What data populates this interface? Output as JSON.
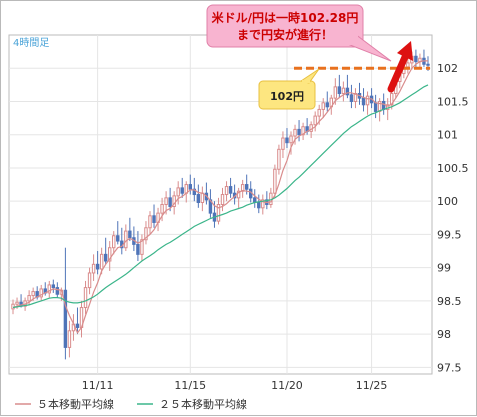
{
  "chart_data": {
    "type": "candlestick",
    "period_label": "4時間足",
    "ylim": [
      97.4,
      102.5
    ],
    "y_ticks": [
      "102",
      "101.5",
      "101",
      "100.5",
      "100",
      "99.5",
      "99",
      "98.5",
      "98",
      "97.5"
    ],
    "y_tick_values": [
      102,
      101.5,
      101,
      100.5,
      100,
      99.5,
      99,
      98.5,
      98,
      97.5
    ],
    "x_ticks": [
      "11/11",
      "11/15",
      "11/20",
      "11/25"
    ],
    "x_tick_indices": [
      21,
      44,
      68,
      89
    ],
    "candle_count": 104,
    "candles": [
      [
        98.38,
        98.52,
        98.3,
        98.45
      ],
      [
        98.45,
        98.55,
        98.38,
        98.48
      ],
      [
        98.48,
        98.6,
        98.4,
        98.42
      ],
      [
        98.42,
        98.55,
        98.35,
        98.5
      ],
      [
        98.5,
        98.66,
        98.44,
        98.58
      ],
      [
        98.58,
        98.7,
        98.5,
        98.64
      ],
      [
        98.64,
        98.72,
        98.52,
        98.56
      ],
      [
        98.56,
        98.74,
        98.5,
        98.68
      ],
      [
        98.68,
        98.78,
        98.58,
        98.62
      ],
      [
        98.62,
        98.8,
        98.55,
        98.74
      ],
      [
        98.74,
        98.82,
        98.62,
        98.7
      ],
      [
        98.7,
        98.78,
        98.55,
        98.6
      ],
      [
        98.6,
        98.7,
        98.5,
        98.66
      ],
      [
        98.66,
        99.3,
        97.62,
        97.8
      ],
      [
        97.8,
        98.2,
        97.65,
        98.05
      ],
      [
        98.05,
        98.3,
        97.9,
        98.15
      ],
      [
        98.15,
        98.4,
        98.0,
        98.1
      ],
      [
        98.1,
        98.5,
        97.95,
        98.4
      ],
      [
        98.4,
        98.8,
        98.3,
        98.7
      ],
      [
        98.7,
        99.0,
        98.6,
        98.92
      ],
      [
        98.92,
        99.2,
        98.8,
        99.05
      ],
      [
        99.05,
        99.25,
        98.9,
        98.98
      ],
      [
        98.98,
        99.3,
        98.9,
        99.2
      ],
      [
        99.2,
        99.45,
        99.05,
        99.1
      ],
      [
        99.1,
        99.4,
        98.95,
        99.3
      ],
      [
        99.3,
        99.55,
        99.2,
        99.48
      ],
      [
        99.48,
        99.7,
        99.35,
        99.4
      ],
      [
        99.4,
        99.6,
        99.2,
        99.3
      ],
      [
        99.3,
        99.65,
        99.25,
        99.55
      ],
      [
        99.55,
        99.75,
        99.4,
        99.45
      ],
      [
        99.45,
        99.62,
        99.25,
        99.35
      ],
      [
        99.35,
        99.55,
        99.1,
        99.2
      ],
      [
        99.2,
        99.5,
        99.1,
        99.42
      ],
      [
        99.42,
        99.7,
        99.35,
        99.6
      ],
      [
        99.6,
        99.85,
        99.5,
        99.78
      ],
      [
        99.78,
        99.95,
        99.6,
        99.68
      ],
      [
        99.68,
        99.9,
        99.55,
        99.82
      ],
      [
        99.82,
        100.05,
        99.7,
        99.95
      ],
      [
        99.95,
        100.15,
        99.8,
        100.05
      ],
      [
        100.05,
        100.2,
        99.85,
        99.92
      ],
      [
        99.92,
        100.15,
        99.8,
        100.08
      ],
      [
        100.08,
        100.3,
        99.95,
        100.2
      ],
      [
        100.2,
        100.35,
        100.05,
        100.12
      ],
      [
        100.12,
        100.3,
        99.98,
        100.25
      ],
      [
        100.25,
        100.4,
        100.1,
        100.18
      ],
      [
        100.18,
        100.35,
        100.0,
        100.1
      ],
      [
        100.1,
        100.25,
        99.9,
        99.98
      ],
      [
        99.98,
        100.22,
        99.85,
        100.12
      ],
      [
        100.12,
        100.28,
        99.95,
        100.02
      ],
      [
        100.02,
        100.18,
        99.75,
        99.82
      ],
      [
        99.82,
        100.0,
        99.6,
        99.7
      ],
      [
        99.7,
        100.05,
        99.65,
        99.95
      ],
      [
        99.95,
        100.2,
        99.85,
        100.1
      ],
      [
        100.1,
        100.3,
        100.0,
        100.22
      ],
      [
        100.22,
        100.35,
        100.05,
        100.12
      ],
      [
        100.12,
        100.25,
        99.95,
        100.05
      ],
      [
        100.05,
        100.2,
        99.9,
        100.15
      ],
      [
        100.15,
        100.32,
        100.05,
        100.25
      ],
      [
        100.25,
        100.4,
        100.1,
        100.18
      ],
      [
        100.18,
        100.3,
        99.98,
        100.05
      ],
      [
        100.05,
        100.18,
        99.9,
        99.98
      ],
      [
        99.98,
        100.1,
        99.82,
        99.9
      ],
      [
        99.9,
        100.1,
        99.8,
        100.02
      ],
      [
        100.02,
        100.15,
        99.88,
        99.95
      ],
      [
        99.95,
        100.2,
        99.9,
        100.12
      ],
      [
        100.12,
        100.55,
        100.05,
        100.48
      ],
      [
        100.48,
        100.85,
        100.4,
        100.78
      ],
      [
        100.78,
        101.05,
        100.65,
        100.95
      ],
      [
        100.95,
        101.1,
        100.8,
        100.88
      ],
      [
        100.88,
        101.05,
        100.7,
        100.98
      ],
      [
        100.98,
        101.15,
        100.85,
        101.08
      ],
      [
        101.08,
        101.22,
        100.9,
        101.0
      ],
      [
        101.0,
        101.18,
        100.92,
        101.12
      ],
      [
        101.12,
        101.25,
        101.0,
        101.05
      ],
      [
        101.05,
        101.2,
        100.95,
        101.15
      ],
      [
        101.15,
        101.35,
        101.05,
        101.28
      ],
      [
        101.28,
        101.45,
        101.15,
        101.38
      ],
      [
        101.38,
        101.55,
        101.25,
        101.48
      ],
      [
        101.48,
        101.65,
        101.35,
        101.42
      ],
      [
        101.42,
        101.6,
        101.3,
        101.55
      ],
      [
        101.55,
        101.85,
        101.45,
        101.72
      ],
      [
        101.72,
        101.9,
        101.55,
        101.62
      ],
      [
        101.62,
        101.8,
        101.5,
        101.7
      ],
      [
        101.7,
        101.9,
        101.55,
        101.6
      ],
      [
        101.6,
        101.75,
        101.4,
        101.5
      ],
      [
        101.5,
        101.7,
        101.4,
        101.62
      ],
      [
        101.62,
        101.78,
        101.45,
        101.55
      ],
      [
        101.55,
        101.7,
        101.35,
        101.45
      ],
      [
        101.45,
        101.65,
        101.3,
        101.58
      ],
      [
        101.58,
        101.7,
        101.4,
        101.48
      ],
      [
        101.48,
        101.6,
        101.25,
        101.35
      ],
      [
        101.35,
        101.55,
        101.2,
        101.5
      ],
      [
        101.5,
        101.62,
        101.3,
        101.38
      ],
      [
        101.38,
        101.55,
        101.22,
        101.45
      ],
      [
        101.45,
        101.7,
        101.38,
        101.62
      ],
      [
        101.62,
        101.88,
        101.55,
        101.8
      ],
      [
        101.8,
        101.98,
        101.7,
        101.92
      ],
      [
        101.92,
        102.08,
        101.85,
        102.02
      ],
      [
        102.02,
        102.15,
        101.92,
        102.08
      ],
      [
        102.08,
        102.25,
        101.98,
        102.18
      ],
      [
        102.18,
        102.28,
        102.0,
        102.1
      ],
      [
        102.1,
        102.22,
        101.98,
        102.15
      ],
      [
        102.15,
        102.28,
        102.02,
        102.06
      ],
      [
        102.06,
        102.18,
        101.96,
        102.05
      ]
    ],
    "series": [
      {
        "name": "５本移動平均線",
        "color": "#d98c8c",
        "values": [
          98.4,
          98.42,
          98.44,
          98.45,
          98.48,
          98.53,
          98.56,
          98.59,
          98.62,
          98.65,
          98.68,
          98.67,
          98.66,
          98.43,
          98.28,
          98.16,
          98.02,
          98.1,
          98.28,
          98.45,
          98.63,
          98.77,
          98.95,
          99.05,
          99.13,
          99.22,
          99.3,
          99.32,
          99.4,
          99.44,
          99.41,
          99.37,
          99.4,
          99.45,
          99.5,
          99.57,
          99.68,
          99.78,
          99.86,
          99.89,
          99.96,
          100.04,
          100.07,
          100.12,
          100.17,
          100.17,
          100.13,
          100.12,
          100.08,
          100.01,
          99.93,
          99.9,
          99.92,
          99.96,
          100.02,
          100.07,
          100.13,
          100.16,
          100.15,
          100.14,
          100.08,
          100.03,
          99.99,
          99.98,
          99.99,
          100.09,
          100.26,
          100.46,
          100.61,
          100.81,
          100.93,
          100.98,
          101.01,
          101.05,
          101.08,
          101.12,
          101.2,
          101.26,
          101.34,
          101.42,
          101.51,
          101.56,
          101.6,
          101.63,
          101.63,
          101.61,
          101.59,
          101.56,
          101.54,
          101.54,
          101.48,
          101.47,
          101.46,
          101.43,
          101.46,
          101.55,
          101.65,
          101.77,
          101.89,
          102.0,
          102.06,
          102.1,
          102.11,
          102.11
        ]
      },
      {
        "name": "２５本移動平均線",
        "color": "#3bb58a",
        "values": [
          98.4,
          98.41,
          98.42,
          98.43,
          98.44,
          98.46,
          98.48,
          98.5,
          98.52,
          98.54,
          98.55,
          98.55,
          98.54,
          98.5,
          98.48,
          98.47,
          98.47,
          98.48,
          98.5,
          98.53,
          98.56,
          98.6,
          98.65,
          98.7,
          98.74,
          98.78,
          98.82,
          98.86,
          98.9,
          98.95,
          99.0,
          99.05,
          99.1,
          99.14,
          99.18,
          99.22,
          99.27,
          99.31,
          99.35,
          99.38,
          99.42,
          99.46,
          99.5,
          99.54,
          99.58,
          99.62,
          99.65,
          99.68,
          99.71,
          99.74,
          99.76,
          99.78,
          99.8,
          99.82,
          99.85,
          99.87,
          99.89,
          99.91,
          99.94,
          99.96,
          99.98,
          99.99,
          100.0,
          100.01,
          100.02,
          100.05,
          100.09,
          100.14,
          100.19,
          100.25,
          100.31,
          100.36,
          100.42,
          100.48,
          100.54,
          100.6,
          100.66,
          100.72,
          100.78,
          100.84,
          100.9,
          100.96,
          101.02,
          101.07,
          101.12,
          101.16,
          101.2,
          101.24,
          101.28,
          101.31,
          101.33,
          101.36,
          101.38,
          101.4,
          101.42,
          101.45,
          101.48,
          101.52,
          101.56,
          101.6,
          101.64,
          101.68,
          101.72,
          101.75
        ]
      }
    ],
    "resistance": {
      "value": 102.0,
      "label": "102円",
      "color": "#e8711e"
    },
    "note": {
      "line1": "米ドル/円は一時102.28円",
      "line2": "まで円安が進行！"
    },
    "colors": {
      "up": "#d98c8c",
      "down": "#4f74b8",
      "grid": "#e5e5e5",
      "axis": "#9a9a9a"
    }
  }
}
